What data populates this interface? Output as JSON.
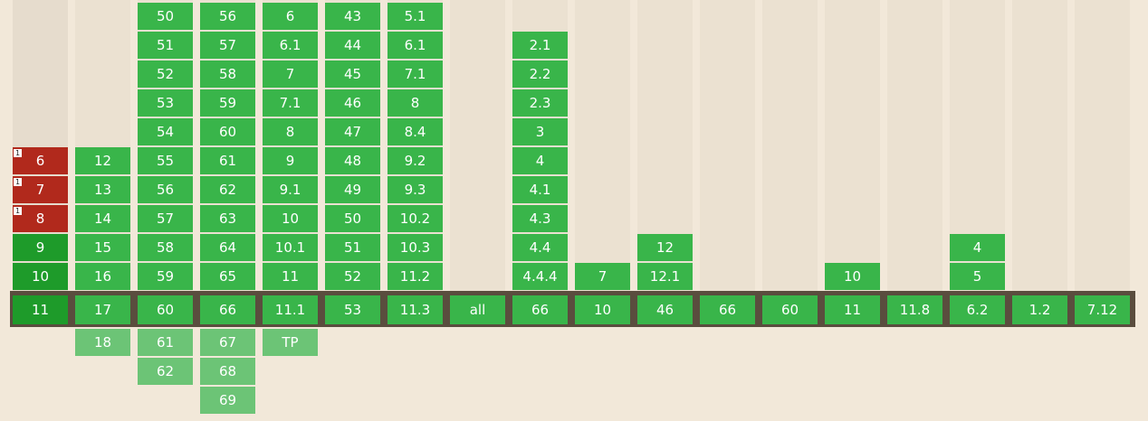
{
  "colors": {
    "supported": "#39b54a",
    "supported_dark": "#1e9b2a",
    "not_supported": "#b1291c",
    "future": "#6cc476",
    "background": "#f2e8d9",
    "current_band": "#5a4d3e"
  },
  "columns": [
    {
      "past": [
        [
          "6",
          "n",
          true
        ],
        [
          "7",
          "n",
          true
        ],
        [
          "8",
          "n",
          true
        ],
        [
          "9",
          "ydark"
        ],
        [
          "10",
          "ydark"
        ]
      ],
      "current": [
        "11",
        "ydark"
      ],
      "future": []
    },
    {
      "past": [
        [
          "12",
          "y"
        ],
        [
          "13",
          "y"
        ],
        [
          "14",
          "y"
        ],
        [
          "15",
          "y"
        ],
        [
          "16",
          "y"
        ]
      ],
      "current": [
        "17",
        "y"
      ],
      "future": [
        "18"
      ]
    },
    {
      "past": [
        [
          "50",
          "y"
        ],
        [
          "51",
          "y"
        ],
        [
          "52",
          "y"
        ],
        [
          "53",
          "y"
        ],
        [
          "54",
          "y"
        ],
        [
          "55",
          "y"
        ],
        [
          "56",
          "y"
        ],
        [
          "57",
          "y"
        ],
        [
          "58",
          "y"
        ],
        [
          "59",
          "y"
        ]
      ],
      "current": [
        "60",
        "y"
      ],
      "future": [
        "61",
        "62"
      ]
    },
    {
      "past": [
        [
          "56",
          "y"
        ],
        [
          "57",
          "y"
        ],
        [
          "58",
          "y"
        ],
        [
          "59",
          "y"
        ],
        [
          "60",
          "y"
        ],
        [
          "61",
          "y"
        ],
        [
          "62",
          "y"
        ],
        [
          "63",
          "y"
        ],
        [
          "64",
          "y"
        ],
        [
          "65",
          "y"
        ]
      ],
      "current": [
        "66",
        "y"
      ],
      "future": [
        "67",
        "68",
        "69"
      ]
    },
    {
      "past": [
        [
          "6",
          "y"
        ],
        [
          "6.1",
          "y"
        ],
        [
          "7",
          "y"
        ],
        [
          "7.1",
          "y"
        ],
        [
          "8",
          "y"
        ],
        [
          "9",
          "y"
        ],
        [
          "9.1",
          "y"
        ],
        [
          "10",
          "y"
        ],
        [
          "10.1",
          "y"
        ],
        [
          "11",
          "y"
        ]
      ],
      "current": [
        "11.1",
        "y"
      ],
      "future": [
        "TP"
      ]
    },
    {
      "past": [
        [
          "43",
          "y"
        ],
        [
          "44",
          "y"
        ],
        [
          "45",
          "y"
        ],
        [
          "46",
          "y"
        ],
        [
          "47",
          "y"
        ],
        [
          "48",
          "y"
        ],
        [
          "49",
          "y"
        ],
        [
          "50",
          "y"
        ],
        [
          "51",
          "y"
        ],
        [
          "52",
          "y"
        ]
      ],
      "current": [
        "53",
        "y"
      ],
      "future": []
    },
    {
      "past": [
        [
          "5.1",
          "y"
        ],
        [
          "6.1",
          "y"
        ],
        [
          "7.1",
          "y"
        ],
        [
          "8",
          "y"
        ],
        [
          "8.4",
          "y"
        ],
        [
          "9.2",
          "y"
        ],
        [
          "9.3",
          "y"
        ],
        [
          "10.2",
          "y"
        ],
        [
          "10.3",
          "y"
        ],
        [
          "11.2",
          "y"
        ]
      ],
      "current": [
        "11.3",
        "y"
      ],
      "future": []
    },
    {
      "past": [],
      "current": [
        "all",
        "y"
      ],
      "future": []
    },
    {
      "past": [
        [
          "2.1",
          "y"
        ],
        [
          "2.2",
          "y"
        ],
        [
          "2.3",
          "y"
        ],
        [
          "3",
          "y"
        ],
        [
          "4",
          "y"
        ],
        [
          "4.1",
          "y"
        ],
        [
          "4.3",
          "y"
        ],
        [
          "4.4",
          "y"
        ],
        [
          "4.4.4",
          "y"
        ]
      ],
      "current": [
        "66",
        "y"
      ],
      "future": []
    },
    {
      "past": [
        [
          "7",
          "y"
        ]
      ],
      "current": [
        "10",
        "y"
      ],
      "future": []
    },
    {
      "past": [
        [
          "12",
          "y"
        ],
        [
          "12.1",
          "y"
        ]
      ],
      "current": [
        "46",
        "y"
      ],
      "future": []
    },
    {
      "past": [],
      "current": [
        "66",
        "y"
      ],
      "future": []
    },
    {
      "past": [],
      "current": [
        "60",
        "y"
      ],
      "future": []
    },
    {
      "past": [
        [
          "10",
          "y"
        ]
      ],
      "current": [
        "11",
        "y"
      ],
      "future": []
    },
    {
      "past": [],
      "current": [
        "11.8",
        "y"
      ],
      "future": []
    },
    {
      "past": [
        [
          "4",
          "y"
        ],
        [
          "5",
          "y"
        ]
      ],
      "current": [
        "6.2",
        "y"
      ],
      "future": []
    },
    {
      "past": [],
      "current": [
        "1.2",
        "y"
      ],
      "future": []
    },
    {
      "past": [],
      "current": [
        "7.12",
        "y"
      ],
      "future": []
    }
  ],
  "note_marker": "1"
}
